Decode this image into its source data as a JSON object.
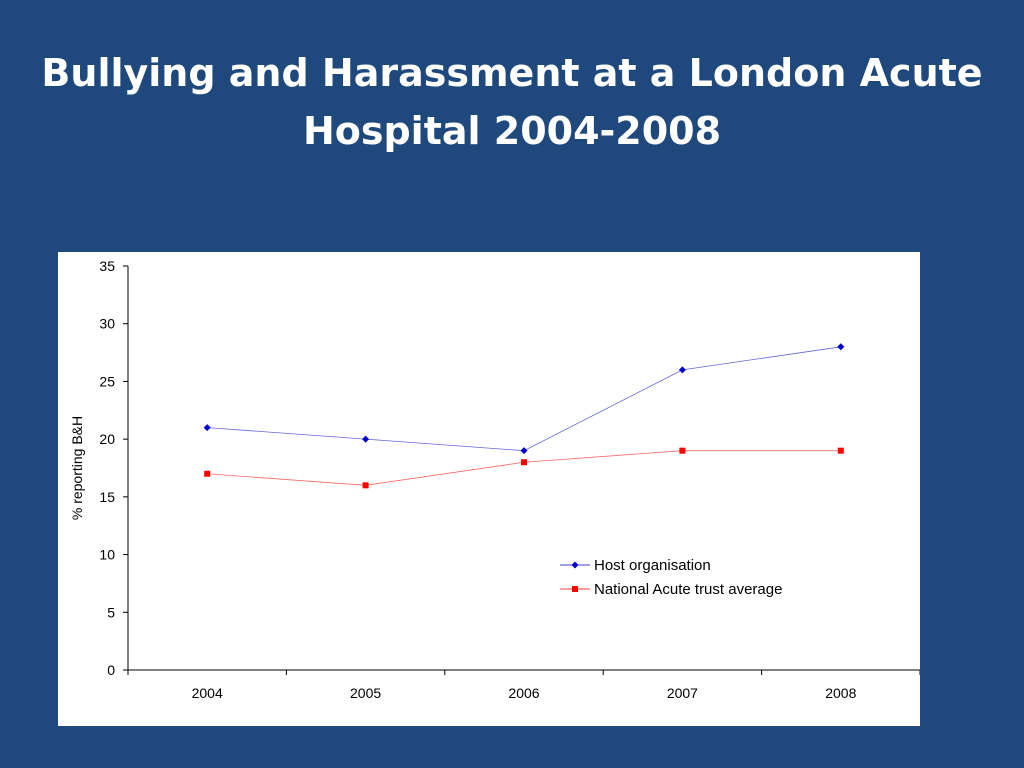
{
  "slide": {
    "title_line1": "Bullying and Harassment at a London Acute",
    "title_line2": "Hospital 2004-2008",
    "background_color": "#1f497d"
  },
  "chart_data": {
    "type": "line",
    "title": "",
    "xlabel": "",
    "ylabel": "% reporting B&H",
    "categories": [
      "2004",
      "2005",
      "2006",
      "2007",
      "2008"
    ],
    "ylim": [
      0,
      35
    ],
    "yticks": [
      0,
      5,
      10,
      15,
      20,
      25,
      30,
      35
    ],
    "grid": false,
    "legend_position": "bottom-right",
    "series": [
      {
        "name": "Host organisation",
        "values": [
          21,
          20,
          19,
          26,
          28
        ],
        "color": "#0000cc",
        "marker": "diamond"
      },
      {
        "name": "National Acute trust average",
        "values": [
          17,
          16,
          18,
          19,
          19
        ],
        "color": "#ff0000",
        "marker": "square"
      }
    ]
  }
}
